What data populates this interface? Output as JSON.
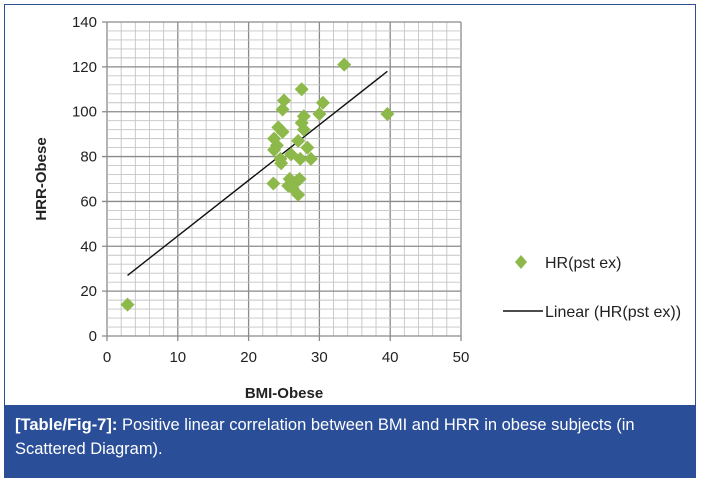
{
  "chart_data": {
    "type": "scatter",
    "title": "",
    "xlabel": "BMI-Obese",
    "ylabel": "HRR-Obese",
    "xlim": [
      0,
      50
    ],
    "ylim": [
      0,
      140
    ],
    "xticks": [
      "0",
      "10",
      "20",
      "30",
      "40",
      "50"
    ],
    "yticks": [
      "0",
      "20",
      "40",
      "60",
      "80",
      "100",
      "120",
      "140"
    ],
    "grid": true,
    "legend_position": "right",
    "series": [
      {
        "name": "HR(pst ex)",
        "marker": "diamond",
        "color": "#8db84a",
        "points": [
          [
            2.9,
            14
          ],
          [
            33.5,
            121
          ],
          [
            39.6,
            99
          ],
          [
            27.5,
            110
          ],
          [
            25,
            105
          ],
          [
            24.8,
            101
          ],
          [
            30.5,
            104
          ],
          [
            30,
            99
          ],
          [
            27.8,
            98
          ],
          [
            27.5,
            95
          ],
          [
            27.8,
            92
          ],
          [
            24.2,
            93
          ],
          [
            24.8,
            91
          ],
          [
            23.6,
            88
          ],
          [
            24,
            85
          ],
          [
            27,
            87
          ],
          [
            23.6,
            83
          ],
          [
            24.5,
            79
          ],
          [
            24.6,
            77
          ],
          [
            26,
            81
          ],
          [
            27.3,
            79
          ],
          [
            28.3,
            84
          ],
          [
            28.8,
            79
          ],
          [
            23.5,
            68
          ],
          [
            25.8,
            70
          ],
          [
            25.6,
            67
          ],
          [
            26.8,
            69
          ],
          [
            27.2,
            70
          ],
          [
            27,
            63
          ],
          [
            26.2,
            66
          ]
        ]
      },
      {
        "name": "Linear (HR(pst ex))",
        "type": "line",
        "color": "#111111",
        "points": [
          [
            2.9,
            27
          ],
          [
            39.6,
            118
          ]
        ]
      }
    ]
  },
  "caption": {
    "label": "[Table/Fig-7]:",
    "text": " Positive linear correlation between BMI and HRR in obese subjects (in Scattered Diagram)."
  }
}
